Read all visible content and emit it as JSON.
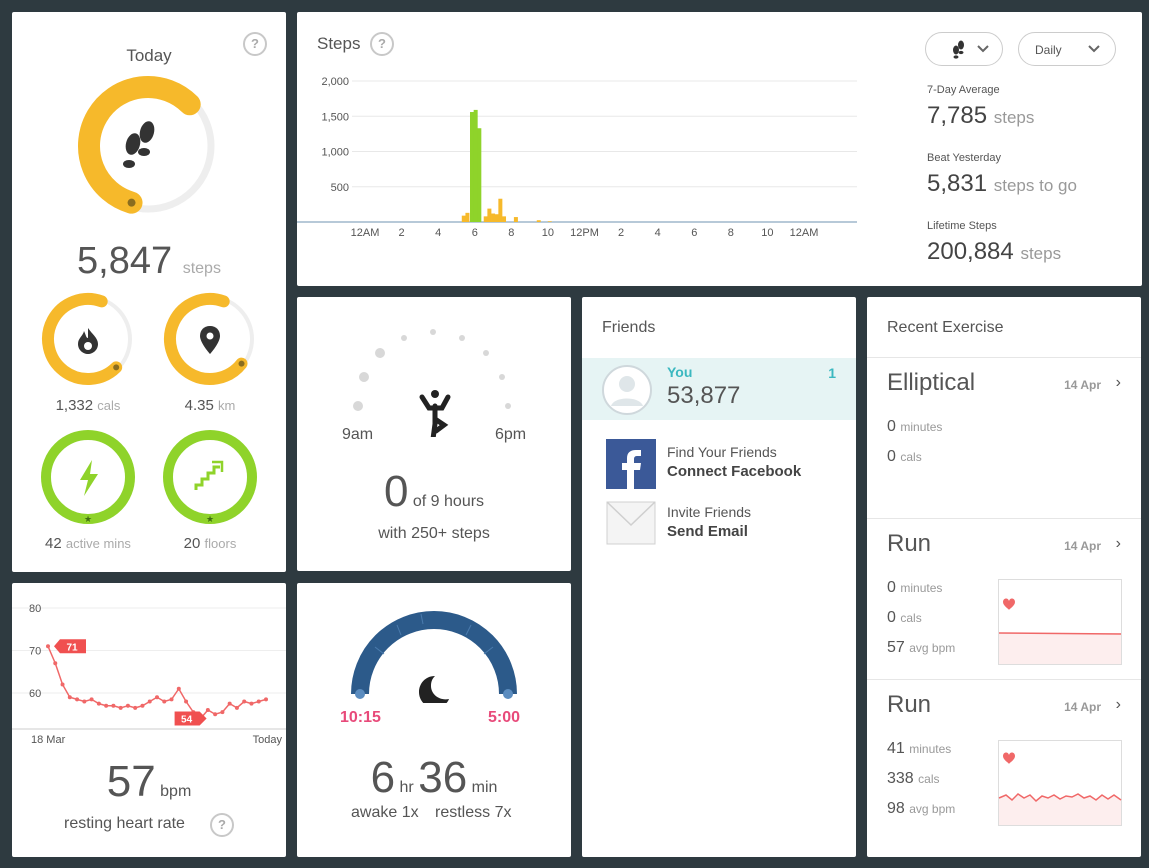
{
  "today": {
    "title": "Today",
    "help": "?",
    "steps_value": "5,847",
    "steps_unit": "steps",
    "steps_progress": 0.58,
    "stats": [
      {
        "value": "1,332",
        "unit": "cals",
        "icon": "flame-icon",
        "progress": 0.68,
        "color": "#f6b92b"
      },
      {
        "value": "4.35",
        "unit": "km",
        "icon": "location-pin-icon",
        "progress": 0.7,
        "color": "#f6b92b"
      },
      {
        "value": "42",
        "unit": "active mins",
        "icon": "lightning-icon",
        "progress": 1.0,
        "color": "#8fd32a"
      },
      {
        "value": "20",
        "unit": "floors",
        "icon": "stairs-icon",
        "progress": 1.0,
        "color": "#8fd32a"
      }
    ]
  },
  "steps": {
    "title": "Steps",
    "help": "?",
    "period_select": "Daily",
    "avg_label": "7-Day Average",
    "avg_value": "7,785",
    "avg_unit": "steps",
    "beat_label": "Beat Yesterday",
    "beat_value": "5,831",
    "beat_unit": "steps to go",
    "lifetime_label": "Lifetime Steps",
    "lifetime_value": "200,884",
    "lifetime_unit": "steps"
  },
  "chart_data": {
    "type": "bar",
    "ylim": [
      0,
      2000
    ],
    "y_ticks": [
      "500",
      "1,000",
      "1,500",
      "2,000"
    ],
    "x_ticks": [
      "12AM",
      "2",
      "4",
      "6",
      "8",
      "10",
      "12PM",
      "2",
      "4",
      "6",
      "8",
      "10",
      "12AM"
    ],
    "colors": {
      "active": "#8fd32a",
      "low": "#f6b92b"
    },
    "bars": [
      {
        "hour": 5.4,
        "value": 90,
        "color": "low"
      },
      {
        "hour": 5.6,
        "value": 130,
        "color": "low"
      },
      {
        "hour": 5.85,
        "value": 1560,
        "color": "active"
      },
      {
        "hour": 6.05,
        "value": 1590,
        "color": "active"
      },
      {
        "hour": 6.25,
        "value": 1330,
        "color": "active"
      },
      {
        "hour": 6.6,
        "value": 80,
        "color": "low"
      },
      {
        "hour": 6.8,
        "value": 190,
        "color": "low"
      },
      {
        "hour": 7.0,
        "value": 120,
        "color": "low"
      },
      {
        "hour": 7.2,
        "value": 110,
        "color": "low"
      },
      {
        "hour": 7.4,
        "value": 330,
        "color": "low"
      },
      {
        "hour": 7.6,
        "value": 80,
        "color": "low"
      },
      {
        "hour": 8.25,
        "value": 70,
        "color": "low"
      },
      {
        "hour": 9.5,
        "value": 25,
        "color": "low"
      },
      {
        "hour": 10.1,
        "value": 10,
        "color": "low"
      }
    ]
  },
  "hourly": {
    "start": "9am",
    "end": "6pm",
    "value": "0",
    "of": "of 9 hours",
    "sub": "with 250+ steps"
  },
  "friends": {
    "title": "Friends",
    "you_label": "You",
    "you_steps": "53,877",
    "you_rank": "1",
    "find_line1": "Find Your Friends",
    "find_line2": "Connect Facebook",
    "invite_line1": "Invite Friends",
    "invite_line2": "Send Email"
  },
  "exercise": {
    "title": "Recent Exercise",
    "items": [
      {
        "name": "Elliptical",
        "date": "14 Apr",
        "minutes": "0",
        "minutes_unit": "minutes",
        "cals": "0",
        "cals_unit": "cals"
      },
      {
        "name": "Run",
        "date": "14 Apr",
        "minutes": "0",
        "minutes_unit": "minutes",
        "cals": "0",
        "cals_unit": "cals",
        "bpm": "57",
        "bpm_unit": "avg bpm"
      },
      {
        "name": "Run",
        "date": "14 Apr",
        "minutes": "41",
        "minutes_unit": "minutes",
        "cals": "338",
        "cals_unit": "cals",
        "bpm": "98",
        "bpm_unit": "avg bpm"
      }
    ]
  },
  "heart": {
    "y_ticks": [
      "80",
      "70",
      "60"
    ],
    "start_label": "18 Mar",
    "end_label": "Today",
    "max_badge": "71",
    "min_badge": "54",
    "values": [
      71,
      67,
      62,
      59,
      58.5,
      58,
      58.5,
      57.5,
      57,
      57,
      56.5,
      57,
      56.5,
      57,
      58,
      59,
      58,
      58.5,
      61,
      58,
      55.5,
      54,
      56,
      55,
      55.5,
      57.5,
      56.5,
      58,
      57.5,
      58,
      58.5
    ],
    "value": "57",
    "unit": "bpm",
    "label": "resting heart rate",
    "help": "?"
  },
  "sleep": {
    "start": "10:15",
    "end": "5:00",
    "hours": "6",
    "hours_unit": "hr",
    "mins": "36",
    "mins_unit": "min",
    "awake": "awake 1x",
    "restless": "restless 7x"
  }
}
